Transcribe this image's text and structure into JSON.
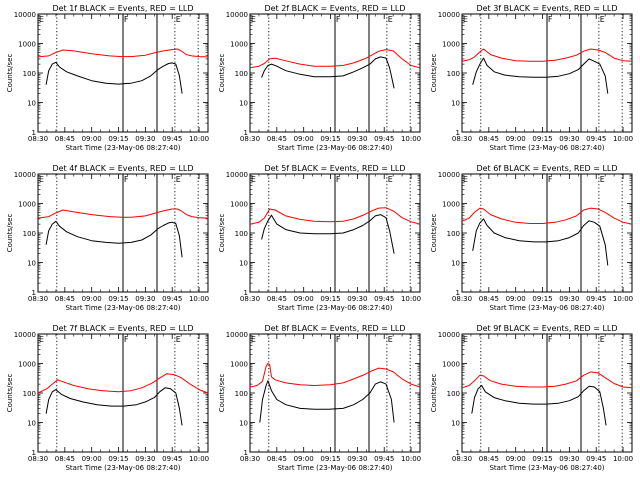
{
  "common": {
    "xlabel": "Start Time (23-May-06 08:27:40)",
    "ylabel": "Counts/sec",
    "x_ticks": [
      "08:30",
      "08:45",
      "09:00",
      "09:15",
      "09:30",
      "09:45",
      "10:00"
    ],
    "y_ticks": [
      "1",
      "10",
      "100",
      "1000",
      "10000"
    ],
    "region_labels": [
      "E",
      "F",
      "E"
    ],
    "dotted_lines_min": [
      10.5,
      76.5,
      89.5
    ],
    "solid_lines_min": [
      47.5,
      66.5
    ],
    "series_colors": {
      "events": "#000000",
      "lld": "#ff0000"
    }
  },
  "chart_data": [
    {
      "type": "line",
      "title": "Det 1f BLACK = Events, RED = LLD",
      "x_unit": "minutes after 08:30",
      "yscale": "log",
      "ylim": [
        1,
        10000
      ],
      "xlim": [
        0,
        95
      ],
      "series": [
        {
          "x": [
            0,
            6,
            10,
            14,
            20,
            30,
            40,
            47,
            52,
            60,
            65,
            70,
            75,
            78,
            80,
            83,
            86,
            90,
            95
          ],
          "y": [
            350,
            380,
            500,
            600,
            560,
            450,
            380,
            360,
            360,
            400,
            480,
            560,
            620,
            650,
            560,
            420,
            380,
            360,
            350
          ]
        },
        {
          "x": [
            4.5,
            6,
            8,
            10,
            12,
            16,
            22,
            30,
            38,
            45,
            52,
            58,
            63,
            67,
            70,
            73,
            75,
            77,
            79,
            80.5
          ],
          "y": [
            40,
            120,
            200,
            230,
            160,
            110,
            80,
            55,
            45,
            42,
            45,
            55,
            80,
            130,
            170,
            210,
            220,
            200,
            80,
            20
          ]
        }
      ]
    },
    {
      "type": "line",
      "title": "Det 2f BLACK = Events, RED = LLD",
      "x_unit": "minutes after 08:30",
      "yscale": "log",
      "ylim": [
        1,
        10000
      ],
      "xlim": [
        0,
        95
      ],
      "series": [
        {
          "x": [
            0,
            5,
            8,
            11,
            14,
            20,
            28,
            36,
            45,
            52,
            58,
            64,
            68,
            72,
            76,
            80,
            85,
            90,
            95
          ],
          "y": [
            150,
            170,
            210,
            300,
            320,
            260,
            200,
            170,
            170,
            180,
            220,
            300,
            400,
            550,
            620,
            560,
            300,
            180,
            150
          ]
        },
        {
          "x": [
            6.5,
            8,
            10,
            12,
            15,
            20,
            28,
            36,
            45,
            52,
            58,
            63,
            67,
            70,
            73,
            76,
            78,
            80.5
          ],
          "y": [
            70,
            120,
            180,
            200,
            170,
            120,
            90,
            75,
            75,
            80,
            110,
            150,
            200,
            300,
            350,
            320,
            150,
            30
          ]
        }
      ]
    },
    {
      "type": "line",
      "title": "Det 3f BLACK = Events, RED = LLD",
      "x_unit": "minutes after 08:30",
      "yscale": "log",
      "ylim": [
        1,
        10000
      ],
      "xlim": [
        0,
        95
      ],
      "series": [
        {
          "x": [
            0,
            4,
            7,
            10,
            12,
            16,
            22,
            30,
            38,
            45,
            52,
            58,
            64,
            68,
            72,
            76,
            80,
            85,
            90,
            95
          ],
          "y": [
            250,
            280,
            350,
            520,
            650,
            420,
            320,
            260,
            250,
            250,
            270,
            320,
            400,
            550,
            650,
            600,
            500,
            320,
            260,
            250
          ]
        },
        {
          "x": [
            6,
            8,
            10,
            12,
            14,
            18,
            24,
            32,
            40,
            47,
            54,
            60,
            65,
            68,
            71,
            74,
            77,
            80,
            81.5
          ],
          "y": [
            40,
            110,
            200,
            320,
            180,
            110,
            85,
            75,
            72,
            72,
            78,
            95,
            130,
            200,
            300,
            250,
            200,
            80,
            20
          ]
        }
      ]
    },
    {
      "type": "line",
      "title": "Det 4f BLACK = Events, RED = LLD",
      "x_unit": "minutes after 08:30",
      "yscale": "log",
      "ylim": [
        1,
        10000
      ],
      "xlim": [
        0,
        95
      ],
      "series": [
        {
          "x": [
            0,
            6,
            10,
            14,
            20,
            30,
            40,
            47,
            52,
            60,
            65,
            70,
            75,
            78,
            80,
            83,
            86,
            90,
            95
          ],
          "y": [
            320,
            360,
            480,
            600,
            520,
            420,
            360,
            340,
            340,
            380,
            460,
            560,
            650,
            650,
            560,
            420,
            360,
            330,
            320
          ]
        },
        {
          "x": [
            4.5,
            6,
            8,
            10,
            12,
            16,
            22,
            30,
            38,
            45,
            52,
            58,
            63,
            67,
            70,
            73,
            75,
            77,
            79,
            80.5
          ],
          "y": [
            40,
            120,
            200,
            250,
            170,
            110,
            75,
            55,
            48,
            45,
            48,
            58,
            85,
            140,
            180,
            220,
            230,
            210,
            80,
            15
          ]
        }
      ]
    },
    {
      "type": "line",
      "title": "Det 5f BLACK = Events, RED = LLD",
      "x_unit": "minutes after 08:30",
      "yscale": "log",
      "ylim": [
        1,
        10000
      ],
      "xlim": [
        0,
        95
      ],
      "series": [
        {
          "x": [
            0,
            5,
            8,
            11,
            14,
            20,
            28,
            36,
            45,
            52,
            58,
            64,
            68,
            72,
            76,
            80,
            85,
            90,
            95
          ],
          "y": [
            200,
            230,
            320,
            650,
            600,
            380,
            290,
            250,
            240,
            250,
            300,
            420,
            560,
            700,
            720,
            560,
            330,
            240,
            200
          ]
        },
        {
          "x": [
            6.5,
            8,
            10,
            12,
            15,
            20,
            28,
            36,
            45,
            52,
            58,
            63,
            67,
            70,
            73,
            76,
            78,
            80.5
          ],
          "y": [
            60,
            140,
            260,
            400,
            200,
            130,
            100,
            95,
            95,
            100,
            130,
            180,
            260,
            380,
            420,
            330,
            120,
            20
          ]
        }
      ]
    },
    {
      "type": "line",
      "title": "Det 6f BLACK = Events, RED = LLD",
      "x_unit": "minutes after 08:30",
      "yscale": "log",
      "ylim": [
        1,
        10000
      ],
      "xlim": [
        0,
        95
      ],
      "series": [
        {
          "x": [
            0,
            4,
            7,
            10,
            12,
            16,
            22,
            30,
            38,
            45,
            52,
            58,
            64,
            68,
            72,
            76,
            80,
            85,
            90,
            95
          ],
          "y": [
            250,
            320,
            500,
            700,
            650,
            420,
            300,
            230,
            210,
            210,
            230,
            280,
            380,
            600,
            700,
            650,
            500,
            320,
            230,
            200
          ]
        },
        {
          "x": [
            6,
            8,
            10,
            12,
            14,
            18,
            24,
            32,
            40,
            47,
            54,
            60,
            65,
            68,
            71,
            74,
            77,
            80,
            81.5
          ],
          "y": [
            25,
            120,
            220,
            300,
            180,
            100,
            70,
            55,
            50,
            50,
            55,
            70,
            100,
            180,
            260,
            230,
            170,
            40,
            8
          ]
        }
      ]
    },
    {
      "type": "line",
      "title": "Det 7f BLACK = Events, RED = LLD",
      "x_unit": "minutes after 08:30",
      "yscale": "log",
      "ylim": [
        1,
        10000
      ],
      "xlim": [
        0,
        95
      ],
      "series": [
        {
          "x": [
            0,
            5,
            8,
            11,
            14,
            20,
            28,
            36,
            45,
            52,
            58,
            64,
            68,
            72,
            76,
            80,
            85,
            90,
            95
          ],
          "y": [
            100,
            140,
            200,
            280,
            240,
            180,
            140,
            120,
            110,
            120,
            150,
            220,
            320,
            450,
            420,
            330,
            200,
            130,
            100
          ]
        },
        {
          "x": [
            4.5,
            6,
            8,
            10,
            13,
            18,
            25,
            33,
            41,
            48,
            55,
            60,
            65,
            68,
            71,
            74,
            77,
            79,
            80.5
          ],
          "y": [
            20,
            60,
            110,
            130,
            90,
            65,
            50,
            40,
            36,
            36,
            40,
            50,
            70,
            110,
            150,
            140,
            100,
            30,
            8
          ]
        }
      ]
    },
    {
      "type": "line",
      "title": "Det 8f BLACK = Events, RED = LLD",
      "x_unit": "minutes after 08:30",
      "yscale": "log",
      "ylim": [
        1,
        10000
      ],
      "xlim": [
        0,
        95
      ],
      "series": [
        {
          "x": [
            0,
            4,
            7,
            9,
            10,
            11,
            12,
            14,
            20,
            28,
            36,
            45,
            52,
            58,
            64,
            68,
            72,
            76,
            80,
            85,
            90,
            95
          ],
          "y": [
            160,
            180,
            250,
            800,
            1000,
            900,
            350,
            280,
            220,
            190,
            180,
            190,
            220,
            300,
            420,
            560,
            700,
            650,
            520,
            300,
            200,
            160
          ]
        },
        {
          "x": [
            5.5,
            7,
            9,
            10,
            12,
            15,
            20,
            28,
            36,
            44,
            52,
            58,
            63,
            67,
            70,
            73,
            76,
            79,
            80.5
          ],
          "y": [
            10,
            60,
            180,
            260,
            120,
            60,
            40,
            30,
            28,
            28,
            30,
            40,
            60,
            100,
            200,
            240,
            200,
            60,
            10
          ]
        }
      ]
    },
    {
      "type": "line",
      "title": "Det 9f BLACK = Events, RED = LLD",
      "x_unit": "minutes after 08:30",
      "yscale": "log",
      "ylim": [
        1,
        10000
      ],
      "xlim": [
        0,
        95
      ],
      "series": [
        {
          "x": [
            0,
            4,
            7,
            10,
            12,
            16,
            22,
            30,
            38,
            45,
            52,
            58,
            64,
            68,
            72,
            76,
            80,
            85,
            90,
            95
          ],
          "y": [
            150,
            180,
            260,
            400,
            380,
            260,
            200,
            170,
            160,
            160,
            170,
            200,
            260,
            400,
            520,
            480,
            330,
            210,
            160,
            150
          ]
        },
        {
          "x": [
            5.5,
            7,
            9,
            11,
            13,
            18,
            24,
            32,
            40,
            47,
            54,
            60,
            65,
            68,
            71,
            74,
            77,
            79,
            80.5
          ],
          "y": [
            20,
            70,
            140,
            180,
            110,
            70,
            55,
            45,
            42,
            42,
            45,
            55,
            75,
            120,
            170,
            160,
            110,
            30,
            8
          ]
        }
      ]
    }
  ]
}
